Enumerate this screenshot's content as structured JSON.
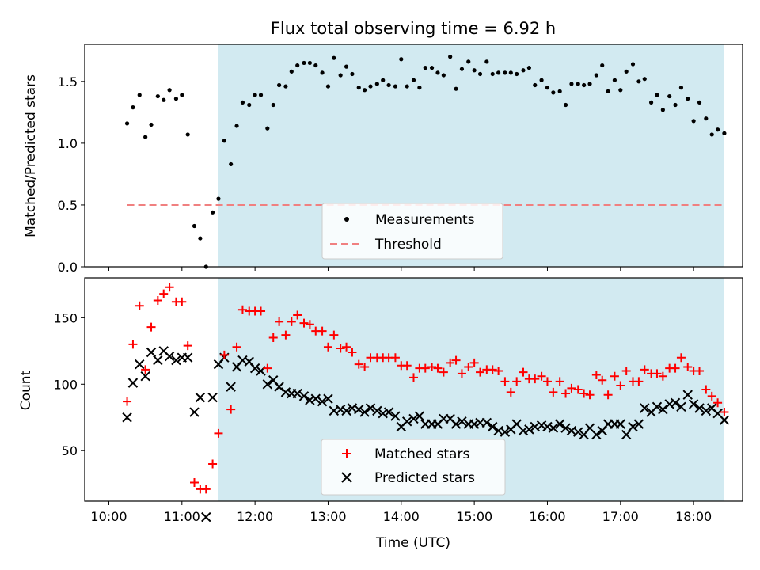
{
  "colors": {
    "shade": "#add8e6",
    "measurement": "#000000",
    "threshold": "#f08080",
    "matched": "#ff0000",
    "predicted": "#000000"
  },
  "chart_data": [
    {
      "type": "scatter",
      "title": "Flux total observing time = 6.92 h",
      "xlabel": "",
      "ylabel": "Matched/Predicted stars",
      "xlim": [
        9.67,
        18.67
      ],
      "ylim": [
        0.0,
        1.8
      ],
      "yticks": [
        0.0,
        0.5,
        1.0,
        1.5
      ],
      "grid": false,
      "legend_position": "lower center",
      "shaded_x_range": [
        11.5,
        18.42
      ],
      "threshold": {
        "name": "Threshold",
        "value": 0.5,
        "x_range": [
          10.25,
          18.42
        ],
        "style": "dashed"
      },
      "series": [
        {
          "name": "Measurements",
          "marker": "dot",
          "x": [
            10.25,
            10.33,
            10.42,
            10.5,
            10.58,
            10.67,
            10.75,
            10.83,
            10.92,
            11.0,
            11.08,
            11.17,
            11.25,
            11.33,
            11.42,
            11.5,
            11.58,
            11.67,
            11.75,
            11.83,
            11.92,
            12.0,
            12.08,
            12.17,
            12.25,
            12.33,
            12.42,
            12.5,
            12.58,
            12.67,
            12.75,
            12.83,
            12.92,
            13.0,
            13.08,
            13.17,
            13.25,
            13.33,
            13.42,
            13.5,
            13.58,
            13.67,
            13.75,
            13.83,
            13.92,
            14.0,
            14.08,
            14.17,
            14.25,
            14.33,
            14.42,
            14.5,
            14.58,
            14.67,
            14.75,
            14.83,
            14.92,
            15.0,
            15.08,
            15.17,
            15.25,
            15.33,
            15.42,
            15.5,
            15.58,
            15.67,
            15.75,
            15.83,
            15.92,
            16.0,
            16.08,
            16.17,
            16.25,
            16.33,
            16.42,
            16.5,
            16.58,
            16.67,
            16.75,
            16.83,
            16.92,
            17.0,
            17.08,
            17.17,
            17.25,
            17.33,
            17.42,
            17.5,
            17.58,
            17.67,
            17.75,
            17.83,
            17.92,
            18.0,
            18.08,
            18.17,
            18.25,
            18.33,
            18.42
          ],
          "y": [
            1.16,
            1.29,
            1.39,
            1.05,
            1.15,
            1.38,
            1.35,
            1.43,
            1.36,
            1.39,
            1.07,
            0.33,
            0.23,
            0.0,
            0.44,
            0.55,
            1.02,
            0.83,
            1.14,
            1.33,
            1.31,
            1.39,
            1.39,
            1.12,
            1.31,
            1.47,
            1.46,
            1.58,
            1.63,
            1.65,
            1.65,
            1.63,
            1.57,
            1.46,
            1.69,
            1.55,
            1.62,
            1.56,
            1.45,
            1.43,
            1.46,
            1.48,
            1.51,
            1.47,
            1.46,
            1.68,
            1.46,
            1.51,
            1.45,
            1.61,
            1.61,
            1.57,
            1.55,
            1.7,
            1.44,
            1.6,
            1.66,
            1.59,
            1.56,
            1.66,
            1.56,
            1.57,
            1.57,
            1.57,
            1.56,
            1.59,
            1.61,
            1.47,
            1.51,
            1.45,
            1.41,
            1.42,
            1.31,
            1.48,
            1.48,
            1.47,
            1.48,
            1.55,
            1.63,
            1.42,
            1.51,
            1.43,
            1.58,
            1.64,
            1.5,
            1.52,
            1.33,
            1.39,
            1.27,
            1.38,
            1.31,
            1.45,
            1.36,
            1.18,
            1.33,
            1.2,
            1.07,
            1.11,
            1.08
          ]
        }
      ]
    },
    {
      "type": "scatter",
      "title": "",
      "xlabel": "Time (UTC)",
      "ylabel": "Count",
      "xlim": [
        9.67,
        18.67
      ],
      "ylim": [
        12,
        180
      ],
      "xticks": [
        10,
        11,
        12,
        13,
        14,
        15,
        16,
        17,
        18
      ],
      "xtick_labels": [
        "10:00",
        "11:00",
        "12:00",
        "13:00",
        "14:00",
        "15:00",
        "16:00",
        "17:00",
        "18:00"
      ],
      "yticks": [
        50,
        100,
        150
      ],
      "grid": false,
      "legend_position": "lower center",
      "shaded_x_range": [
        11.5,
        18.42
      ],
      "series": [
        {
          "name": "Matched stars",
          "marker": "plus",
          "x": [
            10.25,
            10.33,
            10.42,
            10.5,
            10.58,
            10.67,
            10.75,
            10.83,
            10.92,
            11.0,
            11.08,
            11.17,
            11.25,
            11.33,
            11.42,
            11.5,
            11.58,
            11.67,
            11.75,
            11.83,
            11.92,
            12.0,
            12.08,
            12.17,
            12.25,
            12.33,
            12.42,
            12.5,
            12.58,
            12.67,
            12.75,
            12.83,
            12.92,
            13.0,
            13.08,
            13.17,
            13.25,
            13.33,
            13.42,
            13.5,
            13.58,
            13.67,
            13.75,
            13.83,
            13.92,
            14.0,
            14.08,
            14.17,
            14.25,
            14.33,
            14.42,
            14.5,
            14.58,
            14.67,
            14.75,
            14.83,
            14.92,
            15.0,
            15.08,
            15.17,
            15.25,
            15.33,
            15.42,
            15.5,
            15.58,
            15.67,
            15.75,
            15.83,
            15.92,
            16.0,
            16.08,
            16.17,
            16.25,
            16.33,
            16.42,
            16.5,
            16.58,
            16.67,
            16.75,
            16.83,
            16.92,
            17.0,
            17.08,
            17.17,
            17.25,
            17.33,
            17.42,
            17.5,
            17.58,
            17.67,
            17.75,
            17.83,
            17.92,
            18.0,
            18.08,
            18.17,
            18.25,
            18.33,
            18.42
          ],
          "y": [
            87,
            130,
            159,
            111,
            143,
            163,
            168,
            173,
            162,
            162,
            129,
            26,
            21,
            21,
            40,
            63,
            122,
            81,
            128,
            156,
            155,
            155,
            155,
            112,
            135,
            147,
            137,
            147,
            152,
            146,
            145,
            140,
            140,
            128,
            137,
            127,
            128,
            124,
            115,
            113,
            120,
            120,
            120,
            120,
            120,
            114,
            114,
            105,
            112,
            112,
            113,
            112,
            109,
            116,
            118,
            108,
            113,
            116,
            109,
            111,
            111,
            110,
            102,
            94,
            102,
            109,
            104,
            104,
            106,
            102,
            94,
            102,
            93,
            97,
            96,
            93,
            92,
            107,
            103,
            92,
            106,
            99,
            110,
            102,
            102,
            111,
            108,
            108,
            106,
            112,
            112,
            120,
            113,
            110,
            110,
            96,
            91,
            86,
            79
          ]
        },
        {
          "name": "Predicted stars",
          "marker": "x",
          "x": [
            10.25,
            10.33,
            10.42,
            10.5,
            10.58,
            10.67,
            10.75,
            10.83,
            10.92,
            11.0,
            11.08,
            11.17,
            11.25,
            11.33,
            11.42,
            11.5,
            11.58,
            11.67,
            11.75,
            11.83,
            11.92,
            12.0,
            12.08,
            12.17,
            12.25,
            12.33,
            12.42,
            12.5,
            12.58,
            12.67,
            12.75,
            12.83,
            12.92,
            13.0,
            13.08,
            13.17,
            13.25,
            13.33,
            13.42,
            13.5,
            13.58,
            13.67,
            13.75,
            13.83,
            13.92,
            14.0,
            14.08,
            14.17,
            14.25,
            14.33,
            14.42,
            14.5,
            14.58,
            14.67,
            14.75,
            14.83,
            14.92,
            15.0,
            15.08,
            15.17,
            15.25,
            15.33,
            15.42,
            15.5,
            15.58,
            15.67,
            15.75,
            15.83,
            15.92,
            16.0,
            16.08,
            16.17,
            16.25,
            16.33,
            16.42,
            16.5,
            16.58,
            16.67,
            16.75,
            16.83,
            16.92,
            17.0,
            17.08,
            17.17,
            17.25,
            17.33,
            17.42,
            17.5,
            17.58,
            17.67,
            17.75,
            17.83,
            17.92,
            18.0,
            18.08,
            18.17,
            18.25,
            18.33,
            18.42
          ],
          "y": [
            75,
            101,
            115,
            106,
            124,
            118,
            125,
            121,
            118,
            120,
            120,
            79,
            90,
            0,
            90,
            115,
            120,
            98,
            113,
            118,
            117,
            112,
            110,
            100,
            103,
            98,
            94,
            93,
            93,
            91,
            88,
            89,
            87,
            89,
            80,
            81,
            80,
            82,
            81,
            79,
            82,
            80,
            78,
            79,
            76,
            68,
            72,
            74,
            76,
            70,
            70,
            70,
            74,
            74,
            70,
            72,
            70,
            70,
            71,
            71,
            68,
            65,
            64,
            66,
            70,
            65,
            66,
            68,
            69,
            68,
            67,
            70,
            67,
            65,
            64,
            62,
            67,
            62,
            65,
            70,
            70,
            70,
            62,
            68,
            70,
            82,
            79,
            83,
            81,
            85,
            86,
            83,
            92,
            85,
            82,
            80,
            82,
            78,
            73
          ]
        }
      ]
    }
  ]
}
